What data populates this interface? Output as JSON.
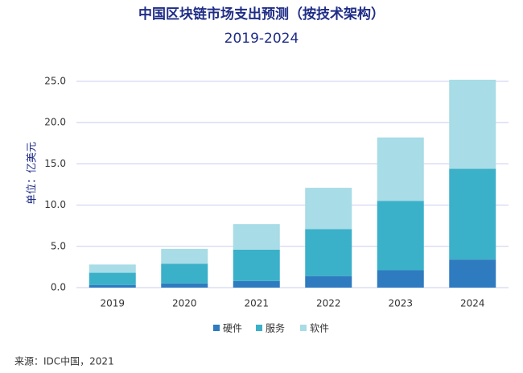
{
  "chart_data": {
    "type": "stacked-bar",
    "title": "中国区块链市场支出预测（按技术架构）",
    "subtitle": "2019-2024",
    "y_label": "单位：亿美元",
    "source": "来源：IDC中国，2021",
    "categories": [
      "2019",
      "2020",
      "2021",
      "2022",
      "2023",
      "2024"
    ],
    "series": [
      {
        "name": "硬件",
        "color": "#2e7bbf",
        "values": [
          0.3,
          0.5,
          0.8,
          1.4,
          2.1,
          3.4
        ]
      },
      {
        "name": "服务",
        "color": "#3bb0c9",
        "values": [
          1.5,
          2.4,
          3.8,
          5.7,
          8.4,
          11.0
        ]
      },
      {
        "name": "软件",
        "color": "#a8dce6",
        "values": [
          1.0,
          1.8,
          3.1,
          5.0,
          7.7,
          10.8
        ]
      }
    ],
    "ylim": [
      0,
      25
    ],
    "yticks": [
      {
        "value": 0,
        "label": "0.0"
      },
      {
        "value": 5,
        "label": "5.0"
      },
      {
        "value": 10,
        "label": "10.0"
      },
      {
        "value": 15,
        "label": "15.0"
      },
      {
        "value": 20,
        "label": "20.0"
      },
      {
        "value": 25,
        "label": "25.0"
      }
    ],
    "grid": true,
    "legend": "bottom"
  }
}
